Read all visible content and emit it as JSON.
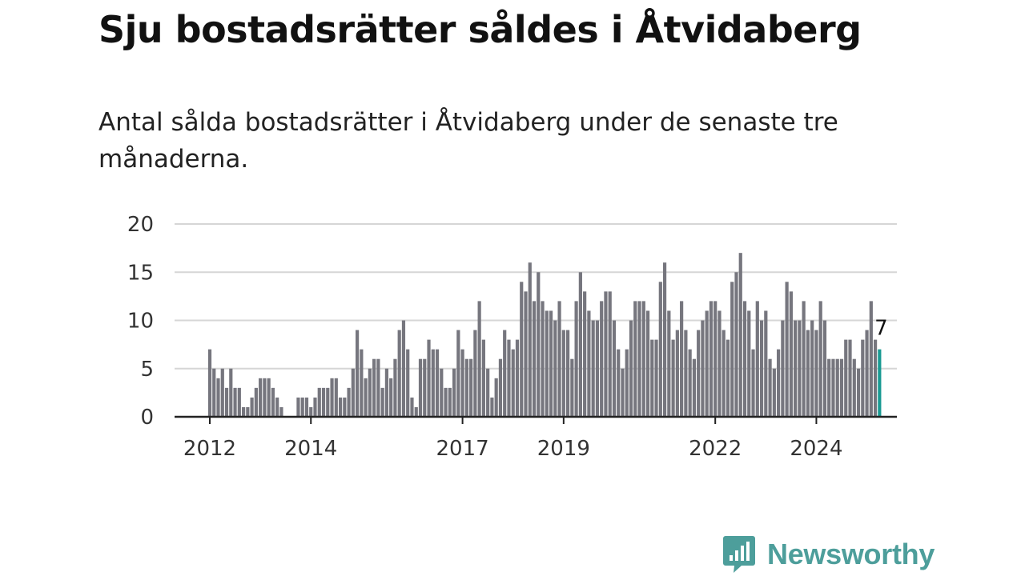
{
  "title": "Sju bostadsrätter såldes i Åtvidaberg",
  "subtitle": "Antal sålda bostadsrätter i Åtvidaberg under de senaste tre månaderna.",
  "brand": {
    "name": "Newsworthy",
    "icon": "newsworthy-logo-icon",
    "color": "#4d9e9b"
  },
  "chart_data": {
    "type": "bar",
    "start": "2012-01",
    "ylim": [
      0,
      20
    ],
    "yticks": [
      0,
      5,
      10,
      15,
      20
    ],
    "xticks": [
      "2012",
      "2014",
      "2017",
      "2019",
      "2022",
      "2024"
    ],
    "grid": true,
    "bar_color": "#76767e",
    "highlight_color": "#1a9a93",
    "values": [
      7,
      5,
      4,
      5,
      3,
      5,
      3,
      3,
      1,
      1,
      2,
      3,
      4,
      4,
      4,
      3,
      2,
      1,
      0,
      0,
      0,
      2,
      2,
      2,
      1,
      2,
      3,
      3,
      3,
      4,
      4,
      2,
      2,
      3,
      5,
      9,
      7,
      4,
      5,
      6,
      6,
      3,
      5,
      4,
      6,
      9,
      10,
      7,
      2,
      1,
      6,
      6,
      8,
      7,
      7,
      5,
      3,
      3,
      5,
      9,
      7,
      6,
      6,
      9,
      12,
      8,
      5,
      2,
      4,
      6,
      9,
      8,
      7,
      8,
      14,
      13,
      16,
      12,
      15,
      12,
      11,
      11,
      10,
      12,
      9,
      9,
      6,
      12,
      15,
      13,
      11,
      10,
      10,
      12,
      13,
      13,
      10,
      7,
      5,
      7,
      10,
      12,
      12,
      12,
      11,
      8,
      8,
      14,
      16,
      11,
      8,
      9,
      12,
      9,
      7,
      6,
      9,
      10,
      11,
      12,
      12,
      11,
      9,
      8,
      14,
      15,
      17,
      12,
      11,
      7,
      12,
      10,
      11,
      6,
      5,
      7,
      10,
      14,
      13,
      10,
      10,
      12,
      9,
      10,
      9,
      12,
      10,
      6,
      6,
      6,
      6,
      8,
      8,
      6,
      5,
      8,
      9,
      12,
      8,
      7
    ],
    "highlight": {
      "label": "7",
      "value": 7
    }
  }
}
